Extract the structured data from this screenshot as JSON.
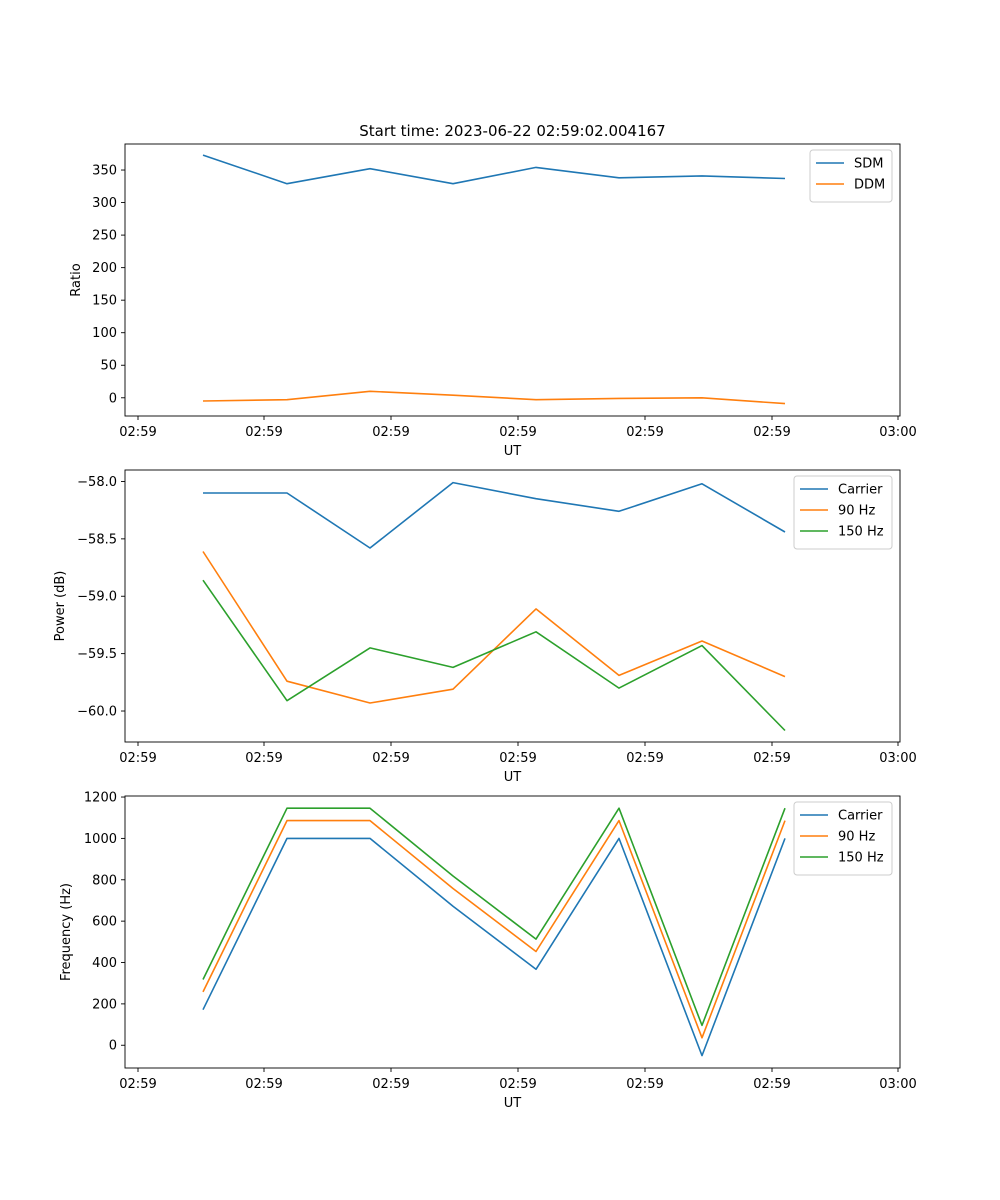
{
  "figure": {
    "title": "Start time: 2023-06-22 02:59:02.004167"
  },
  "chart_data": [
    {
      "type": "line",
      "xlabel": "UT",
      "ylabel": "Ratio",
      "x_tick_labels": [
        "02:59",
        "02:59",
        "02:59",
        "02:59",
        "02:59",
        "02:59",
        "03:00"
      ],
      "ylim": [
        -28,
        390
      ],
      "y_ticks": [
        0,
        50,
        100,
        150,
        200,
        250,
        300,
        350
      ],
      "y_decimals": 0,
      "legend": "top-right",
      "grid": false,
      "series": [
        {
          "name": "SDM",
          "color": "#1f77b4",
          "values": [
            373,
            329,
            352,
            329,
            354,
            338,
            341,
            337
          ]
        },
        {
          "name": "DDM",
          "color": "#ff7f0e",
          "values": [
            -5,
            -3,
            10,
            4,
            -3,
            -1,
            0,
            -9
          ]
        }
      ]
    },
    {
      "type": "line",
      "xlabel": "UT",
      "ylabel": "Power (dB)",
      "x_tick_labels": [
        "02:59",
        "02:59",
        "02:59",
        "02:59",
        "02:59",
        "02:59",
        "03:00"
      ],
      "ylim": [
        -60.27,
        -57.9
      ],
      "y_ticks": [
        -60.0,
        -59.5,
        -59.0,
        -58.5,
        -58.0
      ],
      "y_decimals": 1,
      "legend": "top-right",
      "grid": false,
      "series": [
        {
          "name": "Carrier",
          "color": "#1f77b4",
          "values": [
            -58.1,
            -58.1,
            -58.58,
            -58.01,
            -58.15,
            -58.26,
            -58.02,
            -58.44
          ]
        },
        {
          "name": "90 Hz",
          "color": "#ff7f0e",
          "values": [
            -58.61,
            -59.74,
            -59.93,
            -59.81,
            -59.11,
            -59.69,
            -59.39,
            -59.7
          ]
        },
        {
          "name": "150 Hz",
          "color": "#2ca02c",
          "values": [
            -58.86,
            -59.91,
            -59.45,
            -59.62,
            -59.31,
            -59.8,
            -59.43,
            -60.17
          ]
        }
      ]
    },
    {
      "type": "line",
      "xlabel": "UT",
      "ylabel": "Frequency (Hz)",
      "x_tick_labels": [
        "02:59",
        "02:59",
        "02:59",
        "02:59",
        "02:59",
        "02:59",
        "03:00"
      ],
      "ylim": [
        -110,
        1205
      ],
      "y_ticks": [
        0,
        200,
        400,
        600,
        800,
        1000,
        1200
      ],
      "y_decimals": 0,
      "legend": "top-right",
      "grid": false,
      "series": [
        {
          "name": "Carrier",
          "color": "#1f77b4",
          "values": [
            172,
            1000,
            1000,
            672,
            367,
            1000,
            -50,
            1000
          ]
        },
        {
          "name": "90 Hz",
          "color": "#ff7f0e",
          "values": [
            258,
            1086,
            1086,
            758,
            453,
            1086,
            36,
            1086
          ]
        },
        {
          "name": "150 Hz",
          "color": "#2ca02c",
          "values": [
            318,
            1146,
            1146,
            818,
            513,
            1146,
            96,
            1146
          ]
        }
      ]
    }
  ]
}
